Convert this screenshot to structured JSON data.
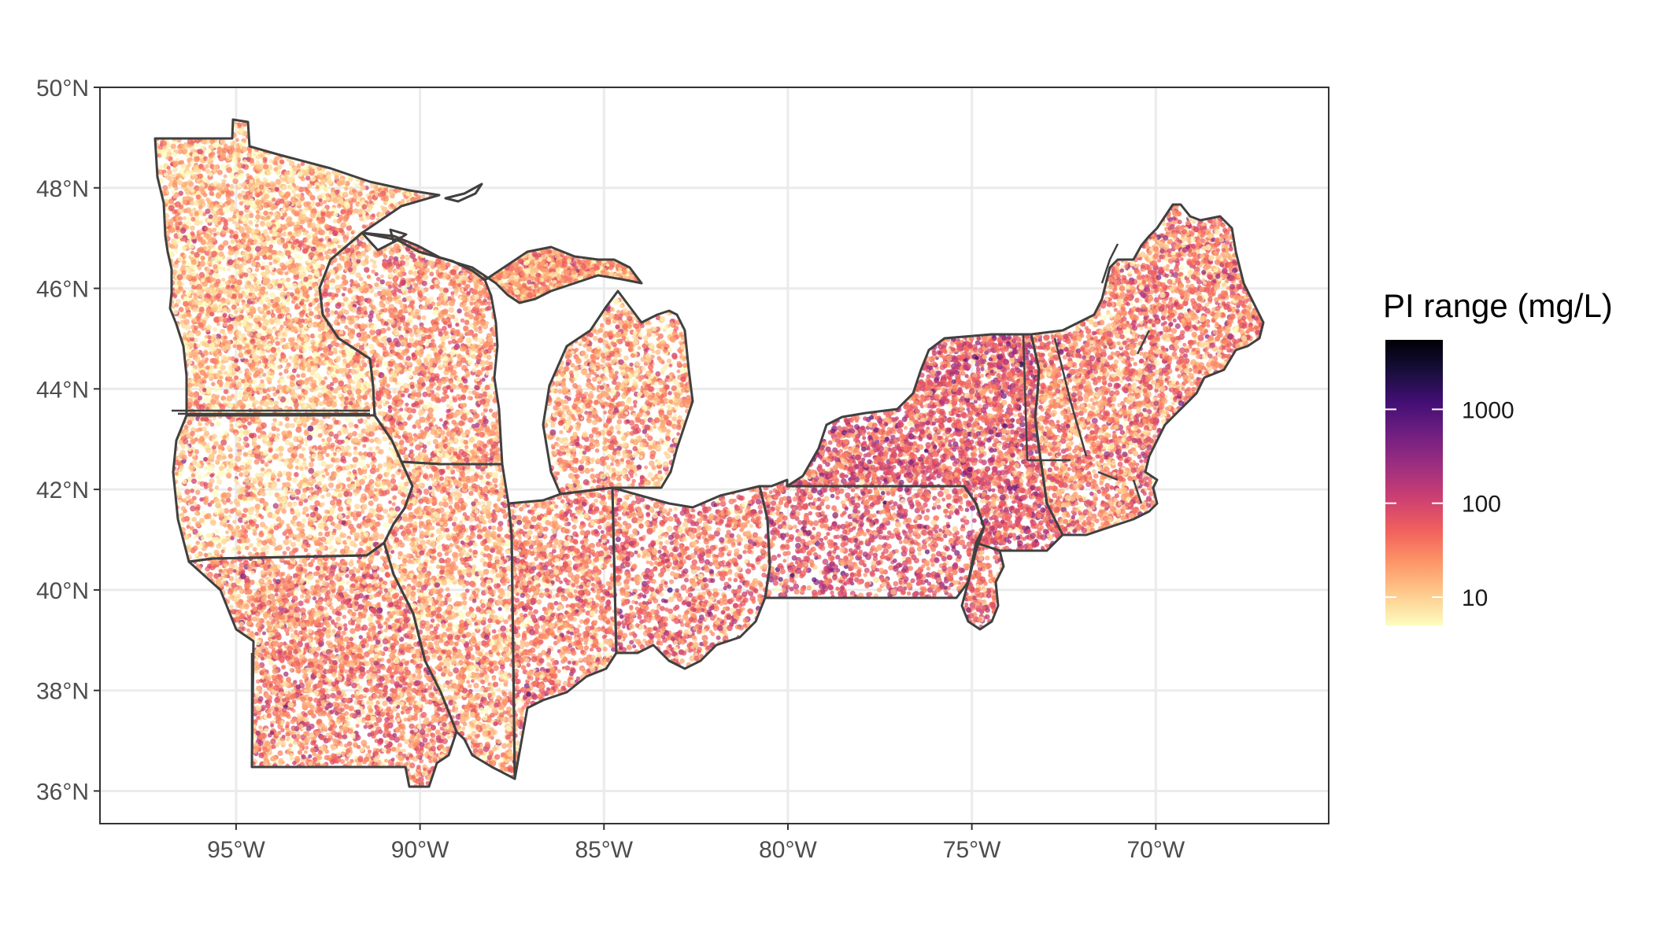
{
  "chart_data": {
    "type": "scatter",
    "title": "",
    "xlabel": "",
    "ylabel": "",
    "x_axis": {
      "unit": "degrees longitude (negative = W)",
      "range": [
        -98.7,
        -65.3
      ],
      "ticks": [
        {
          "value": -95,
          "label": "95°W"
        },
        {
          "value": -90,
          "label": "90°W"
        },
        {
          "value": -85,
          "label": "85°W"
        },
        {
          "value": -80,
          "label": "80°W"
        },
        {
          "value": -75,
          "label": "75°W"
        },
        {
          "value": -70,
          "label": "70°W"
        }
      ]
    },
    "y_axis": {
      "unit": "degrees latitude (N)",
      "range": [
        35.35,
        50.0
      ],
      "ticks": [
        {
          "value": 36,
          "label": "36°N"
        },
        {
          "value": 38,
          "label": "38°N"
        },
        {
          "value": 40,
          "label": "40°N"
        },
        {
          "value": 42,
          "label": "42°N"
        },
        {
          "value": 44,
          "label": "44°N"
        },
        {
          "value": 46,
          "label": "46°N"
        },
        {
          "value": 48,
          "label": "48°N"
        },
        {
          "value": 50,
          "label": "50°N"
        }
      ]
    },
    "grid": true,
    "legend": {
      "title": "PI range (mg/L)",
      "placement": "right",
      "scale": "log10",
      "range": [
        5,
        5500
      ],
      "breaks": [
        {
          "value": 10,
          "label": "10"
        },
        {
          "value": 100,
          "label": "100"
        },
        {
          "value": 1000,
          "label": "1000"
        }
      ],
      "colormap": "magma (reversed)",
      "colors": [
        "#fcfdbf",
        "#feca8d",
        "#fd9567",
        "#f1605d",
        "#cd4071",
        "#9e2f7f",
        "#721f81",
        "#440f76",
        "#180f3d",
        "#000004"
      ]
    },
    "regions": [
      {
        "name": "Minnesota",
        "mean_log10_pi": 1.15
      },
      {
        "name": "Wisconsin",
        "mean_log10_pi": 1.35
      },
      {
        "name": "Iowa",
        "mean_log10_pi": 1.2
      },
      {
        "name": "Missouri",
        "mean_log10_pi": 1.45
      },
      {
        "name": "Illinois",
        "mean_log10_pi": 1.3
      },
      {
        "name": "Indiana",
        "mean_log10_pi": 1.5
      },
      {
        "name": "Michigan",
        "mean_log10_pi": 1.3
      },
      {
        "name": "Ohio",
        "mean_log10_pi": 1.6
      },
      {
        "name": "Pennsylvania",
        "mean_log10_pi": 1.75
      },
      {
        "name": "New York",
        "mean_log10_pi": 1.8
      },
      {
        "name": "New Jersey",
        "mean_log10_pi": 1.7
      },
      {
        "name": "New England",
        "mean_log10_pi": 1.5
      }
    ]
  }
}
